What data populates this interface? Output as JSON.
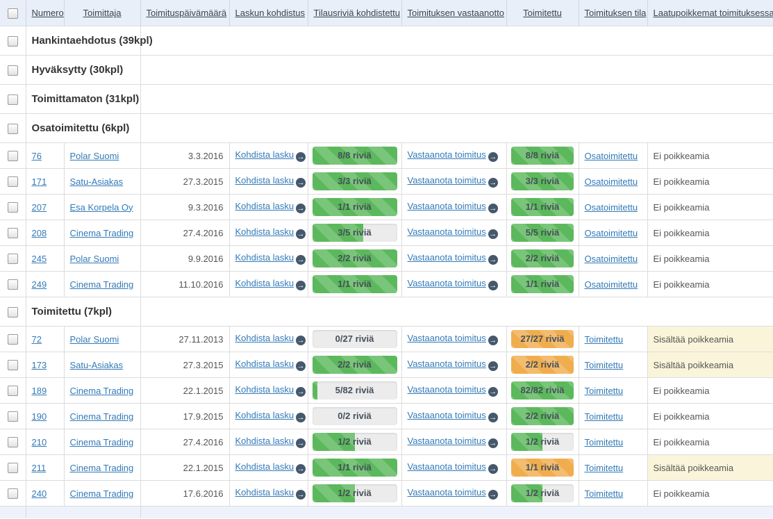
{
  "table": {
    "headers": [
      {
        "label": "Numero"
      },
      {
        "label": "Toimittaja"
      },
      {
        "label": "Toimituspäivämäärä"
      },
      {
        "label": "Laskun kohdistus"
      },
      {
        "label": "Tilausriviä kohdistettu"
      },
      {
        "label": "Toimituksen vastaanotto"
      },
      {
        "label": "Toimitettu"
      },
      {
        "label": "Toimituksen tila"
      },
      {
        "label": "Laatupoikkemat toimituksessa"
      }
    ],
    "actions": {
      "kohdista_label": "Kohdista lasku",
      "vastaanota_label": "Vastaanota toimitus",
      "go_icon": "→"
    },
    "groups": [
      {
        "label": "Hankintaehdotus (39kpl)",
        "rows": []
      },
      {
        "label": "Hyväksytty (30kpl)",
        "rows": []
      },
      {
        "label": "Toimittamaton (31kpl)",
        "rows": []
      },
      {
        "label": "Osatoimitettu (6kpl)",
        "rows": [
          {
            "numero": "76",
            "toimittaja": "Polar Suomi",
            "pvm": "3.3.2016",
            "kohdistettu": {
              "text": "8/8 riviä",
              "pct": 100,
              "variant": "green"
            },
            "toimitettu": {
              "text": "8/8 riviä",
              "pct": 100,
              "variant": "green"
            },
            "tila": "Osatoimitettu",
            "laatu": "Ei poikkeamia",
            "laatu_warn": false
          },
          {
            "numero": "171",
            "toimittaja": "Satu-Asiakas",
            "pvm": "27.3.2015",
            "kohdistettu": {
              "text": "3/3 riviä",
              "pct": 100,
              "variant": "green"
            },
            "toimitettu": {
              "text": "3/3 riviä",
              "pct": 100,
              "variant": "green"
            },
            "tila": "Osatoimitettu",
            "laatu": "Ei poikkeamia",
            "laatu_warn": false
          },
          {
            "numero": "207",
            "toimittaja": "Esa Korpela Oy",
            "pvm": "9.3.2016",
            "kohdistettu": {
              "text": "1/1 riviä",
              "pct": 100,
              "variant": "green"
            },
            "toimitettu": {
              "text": "1/1 riviä",
              "pct": 100,
              "variant": "green"
            },
            "tila": "Osatoimitettu",
            "laatu": "Ei poikkeamia",
            "laatu_warn": false
          },
          {
            "numero": "208",
            "toimittaja": "Cinema Trading",
            "pvm": "27.4.2016",
            "kohdistettu": {
              "text": "3/5 riviä",
              "pct": 60,
              "variant": "green"
            },
            "toimitettu": {
              "text": "5/5 riviä",
              "pct": 100,
              "variant": "green"
            },
            "tila": "Osatoimitettu",
            "laatu": "Ei poikkeamia",
            "laatu_warn": false
          },
          {
            "numero": "245",
            "toimittaja": "Polar Suomi",
            "pvm": "9.9.2016",
            "kohdistettu": {
              "text": "2/2 riviä",
              "pct": 100,
              "variant": "green"
            },
            "toimitettu": {
              "text": "2/2 riviä",
              "pct": 100,
              "variant": "green"
            },
            "tila": "Osatoimitettu",
            "laatu": "Ei poikkeamia",
            "laatu_warn": false
          },
          {
            "numero": "249",
            "toimittaja": "Cinema Trading",
            "pvm": "11.10.2016",
            "kohdistettu": {
              "text": "1/1 riviä",
              "pct": 100,
              "variant": "green"
            },
            "toimitettu": {
              "text": "1/1 riviä",
              "pct": 100,
              "variant": "green"
            },
            "tila": "Osatoimitettu",
            "laatu": "Ei poikkeamia",
            "laatu_warn": false
          }
        ]
      },
      {
        "label": "Toimitettu (7kpl)",
        "rows": [
          {
            "numero": "72",
            "toimittaja": "Polar Suomi",
            "pvm": "27.11.2013",
            "kohdistettu": {
              "text": "0/27 riviä",
              "pct": 0,
              "variant": "green"
            },
            "toimitettu": {
              "text": "27/27 riviä",
              "pct": 100,
              "variant": "orange"
            },
            "tila": "Toimitettu",
            "laatu": "Sisältää poikkeamia",
            "laatu_warn": true
          },
          {
            "numero": "173",
            "toimittaja": "Satu-Asiakas",
            "pvm": "27.3.2015",
            "kohdistettu": {
              "text": "2/2 riviä",
              "pct": 100,
              "variant": "green"
            },
            "toimitettu": {
              "text": "2/2 riviä",
              "pct": 100,
              "variant": "orange"
            },
            "tila": "Toimitettu",
            "laatu": "Sisältää poikkeamia",
            "laatu_warn": true
          },
          {
            "numero": "189",
            "toimittaja": "Cinema Trading",
            "pvm": "22.1.2015",
            "kohdistettu": {
              "text": "5/82 riviä",
              "pct": 6,
              "variant": "green"
            },
            "toimitettu": {
              "text": "82/82 riviä",
              "pct": 100,
              "variant": "green"
            },
            "tila": "Toimitettu",
            "laatu": "Ei poikkeamia",
            "laatu_warn": false
          },
          {
            "numero": "190",
            "toimittaja": "Cinema Trading",
            "pvm": "17.9.2015",
            "kohdistettu": {
              "text": "0/2 riviä",
              "pct": 0,
              "variant": "green"
            },
            "toimitettu": {
              "text": "2/2 riviä",
              "pct": 100,
              "variant": "green"
            },
            "tila": "Toimitettu",
            "laatu": "Ei poikkeamia",
            "laatu_warn": false
          },
          {
            "numero": "210",
            "toimittaja": "Cinema Trading",
            "pvm": "27.4.2016",
            "kohdistettu": {
              "text": "1/2 riviä",
              "pct": 50,
              "variant": "green"
            },
            "toimitettu": {
              "text": "1/2 riviä",
              "pct": 50,
              "variant": "green"
            },
            "tila": "Toimitettu",
            "laatu": "Ei poikkeamia",
            "laatu_warn": false
          },
          {
            "numero": "211",
            "toimittaja": "Cinema Trading",
            "pvm": "22.1.2015",
            "kohdistettu": {
              "text": "1/1 riviä",
              "pct": 100,
              "variant": "green"
            },
            "toimitettu": {
              "text": "1/1 riviä",
              "pct": 100,
              "variant": "orange"
            },
            "tila": "Toimitettu",
            "laatu": "Sisältää poikkeamia",
            "laatu_warn": true
          },
          {
            "numero": "240",
            "toimittaja": "Cinema Trading",
            "pvm": "17.6.2016",
            "kohdistettu": {
              "text": "1/2 riviä",
              "pct": 50,
              "variant": "green"
            },
            "toimitettu": {
              "text": "1/2 riviä",
              "pct": 50,
              "variant": "green"
            },
            "tila": "Toimitettu",
            "laatu": "Ei poikkeamia",
            "laatu_warn": false
          }
        ]
      }
    ]
  },
  "colors": {
    "header_bg": "#e9eff8",
    "green": "#5cb85c",
    "orange": "#f0ad4e",
    "track": "#ececec",
    "warn_bg": "#faf5da",
    "link": "#337ab7",
    "icon_circle": "#45586c"
  }
}
